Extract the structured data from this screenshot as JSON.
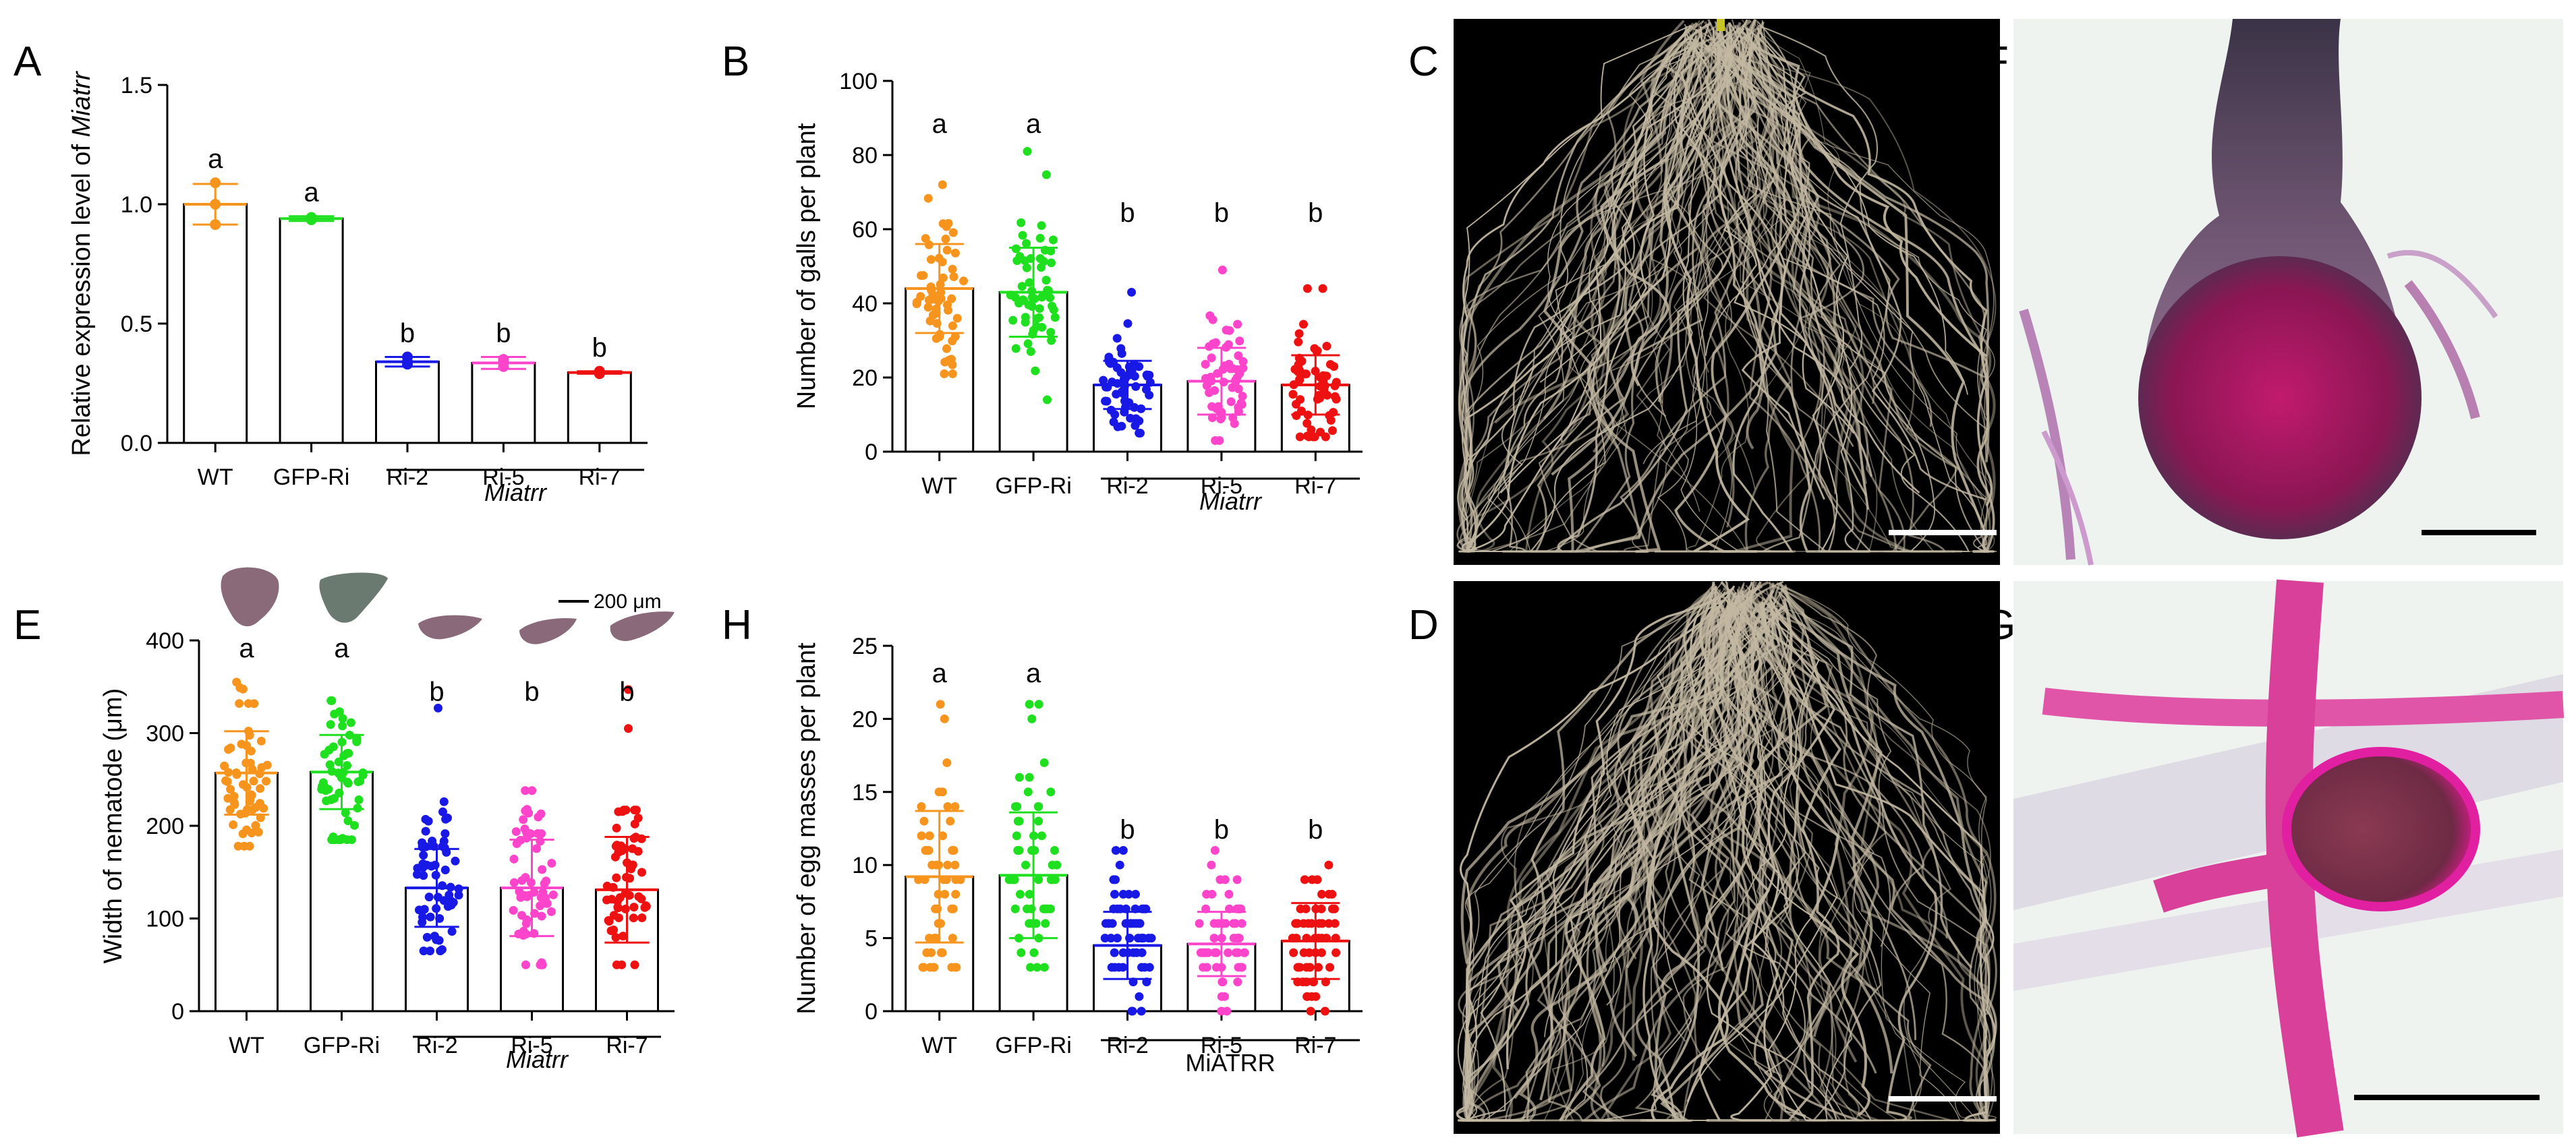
{
  "figure": {
    "panel_labels": [
      "A",
      "B",
      "C",
      "D",
      "E",
      "F",
      "G",
      "H"
    ],
    "photos": [
      {
        "label": "C",
        "subject": "root system",
        "background": "#000000"
      },
      {
        "label": "D",
        "subject": "root system",
        "background": "#000000"
      },
      {
        "label": "F",
        "subject": "stained gall",
        "background": "#eef3f0"
      },
      {
        "label": "G",
        "subject": "stained gall",
        "background": "#eef3f0"
      }
    ],
    "scale_bar_label": "200 μm"
  },
  "colors": {
    "WT": "#f7941d",
    "GFP-Ri": "#1fe01f",
    "Ri-2": "#1919e6",
    "Ri-5": "#ff44cc",
    "Ri-7": "#ee1111"
  },
  "chart_data": [
    {
      "panel": "A",
      "type": "bar",
      "ylabel_prefix": "Relative expression level of ",
      "ylabel_italic": "Miatrr",
      "categories": [
        "WT",
        "GFP-Ri",
        "Ri-2",
        "Ri-5",
        "Ri-7"
      ],
      "group_label": "Miatrr",
      "group_italic": true,
      "values": [
        1.0,
        0.94,
        0.34,
        0.335,
        0.295
      ],
      "errors": [
        0.085,
        0.01,
        0.02,
        0.025,
        0.005
      ],
      "letters": [
        "a",
        "a",
        "b",
        "b",
        "b"
      ],
      "ylim": [
        0,
        1.5
      ],
      "yticks": [
        0.0,
        0.5,
        1.0,
        1.5
      ],
      "ytick_labels": [
        "0.0",
        "0.5",
        "1.0",
        "1.5"
      ],
      "points": [
        [
          1.09,
          1.0,
          0.915
        ],
        [
          0.94,
          0.945,
          0.935
        ],
        [
          0.36,
          0.33,
          0.34
        ],
        [
          0.35,
          0.32,
          0.34
        ],
        [
          0.3,
          0.295,
          0.29
        ]
      ]
    },
    {
      "panel": "B",
      "type": "bar",
      "ylabel": "Number of galls per plant",
      "categories": [
        "WT",
        "GFP-Ri",
        "Ri-2",
        "Ri-5",
        "Ri-7"
      ],
      "group_label": "Miatrr",
      "group_italic": true,
      "values": [
        44,
        43,
        18,
        19,
        18
      ],
      "errors": [
        12,
        12,
        6.5,
        9,
        8
      ],
      "letters": [
        "a",
        "a",
        "b",
        "b",
        "b"
      ],
      "ylim": [
        0,
        100
      ],
      "yticks": [
        0,
        20,
        40,
        60,
        80,
        100
      ],
      "ytick_labels": [
        "0",
        "20",
        "40",
        "60",
        "80",
        "100"
      ],
      "point_ranges": [
        [
          21,
          72
        ],
        [
          14,
          81
        ],
        [
          5,
          43
        ],
        [
          3,
          49
        ],
        [
          4,
          44
        ]
      ],
      "n_points": 58
    },
    {
      "panel": "E",
      "type": "bar",
      "ylabel": "Width of nematode (μm)",
      "categories": [
        "WT",
        "GFP-Ri",
        "Ri-2",
        "Ri-5",
        "Ri-7"
      ],
      "group_label": "Miatrr",
      "group_italic": true,
      "values": [
        257,
        258,
        133,
        133,
        131
      ],
      "errors": [
        45,
        40,
        42,
        52,
        57
      ],
      "letters": [
        "a",
        "a",
        "b",
        "b",
        "b"
      ],
      "ylim": [
        0,
        400
      ],
      "yticks": [
        0,
        100,
        200,
        300,
        400
      ],
      "ytick_labels": [
        "0",
        "100",
        "200",
        "300",
        "400"
      ],
      "point_ranges": [
        [
          178,
          355
        ],
        [
          185,
          335
        ],
        [
          65,
          226
        ],
        [
          50,
          238
        ],
        [
          50,
          217
        ]
      ],
      "outliers": [
        [],
        [],
        [
          327
        ],
        [],
        [
          347,
          305
        ]
      ],
      "n_points": 58
    },
    {
      "panel": "H",
      "type": "bar",
      "ylabel": "Number of egg masses per plant",
      "categories": [
        "WT",
        "GFP-Ri",
        "Ri-2",
        "Ri-5",
        "Ri-7"
      ],
      "group_label": "MiATRR",
      "group_italic": false,
      "values": [
        9.2,
        9.3,
        4.5,
        4.6,
        4.8
      ],
      "errors": [
        4.5,
        4.3,
        2.3,
        2.2,
        2.6
      ],
      "letters": [
        "a",
        "a",
        "b",
        "b",
        "b"
      ],
      "ylim": [
        0,
        25
      ],
      "yticks": [
        0,
        5,
        10,
        15,
        20,
        25
      ],
      "ytick_labels": [
        "0",
        "5",
        "10",
        "15",
        "20",
        "25"
      ],
      "point_ranges": [
        [
          3,
          21
        ],
        [
          3,
          21
        ],
        [
          0,
          11
        ],
        [
          0,
          11
        ],
        [
          0,
          10
        ]
      ],
      "n_points": 58
    }
  ]
}
